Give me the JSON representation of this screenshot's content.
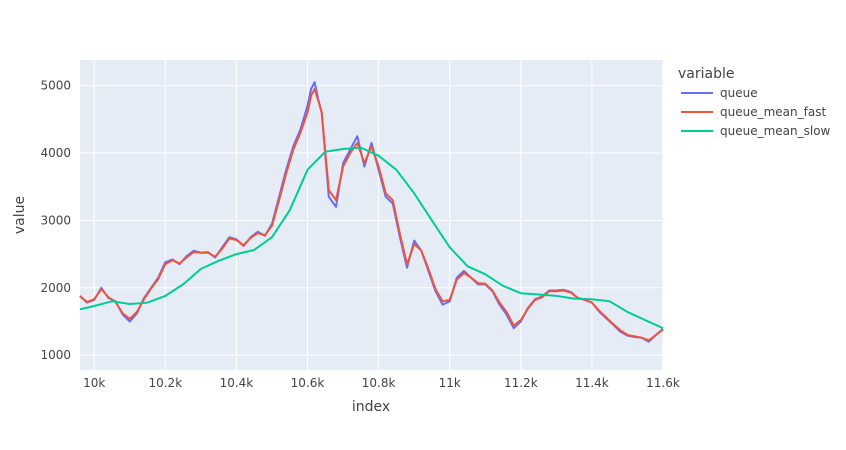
{
  "chart_data": {
    "type": "line",
    "xlabel": "index",
    "ylabel": "value",
    "xlim": [
      9960,
      11600
    ],
    "ylim": [
      780,
      5380
    ],
    "x_ticks": [
      {
        "value": 10000,
        "label": "10k"
      },
      {
        "value": 10200,
        "label": "10.2k"
      },
      {
        "value": 10400,
        "label": "10.4k"
      },
      {
        "value": 10600,
        "label": "10.6k"
      },
      {
        "value": 10800,
        "label": "10.8k"
      },
      {
        "value": 11000,
        "label": "11k"
      },
      {
        "value": 11200,
        "label": "11.2k"
      },
      {
        "value": 11400,
        "label": "11.4k"
      },
      {
        "value": 11600,
        "label": "11.6k"
      }
    ],
    "y_ticks": [
      {
        "value": 1000,
        "label": "1000"
      },
      {
        "value": 2000,
        "label": "2000"
      },
      {
        "value": 3000,
        "label": "3000"
      },
      {
        "value": 4000,
        "label": "4000"
      },
      {
        "value": 5000,
        "label": "5000"
      }
    ],
    "grid": true,
    "legend": {
      "title": "variable",
      "position": "right"
    },
    "series": [
      {
        "name": "queue",
        "color": "#636efa",
        "x": [
          9960,
          9980,
          10000,
          10020,
          10040,
          10060,
          10080,
          10100,
          10120,
          10140,
          10160,
          10180,
          10200,
          10220,
          10240,
          10260,
          10280,
          10300,
          10320,
          10340,
          10360,
          10380,
          10400,
          10420,
          10440,
          10460,
          10480,
          10500,
          10520,
          10540,
          10560,
          10580,
          10600,
          10610,
          10620,
          10630,
          10640,
          10660,
          10680,
          10700,
          10720,
          10740,
          10760,
          10780,
          10800,
          10820,
          10840,
          10860,
          10880,
          10900,
          10920,
          10940,
          10960,
          10980,
          11000,
          11020,
          11040,
          11060,
          11080,
          11100,
          11120,
          11140,
          11160,
          11180,
          11200,
          11220,
          11240,
          11260,
          11280,
          11300,
          11320,
          11340,
          11360,
          11380,
          11400,
          11420,
          11440,
          11460,
          11480,
          11500,
          11520,
          11540,
          11560,
          11580,
          11600
        ],
        "y": [
          1880,
          1780,
          1820,
          2000,
          1850,
          1800,
          1600,
          1500,
          1620,
          1850,
          2000,
          2150,
          2380,
          2420,
          2350,
          2470,
          2550,
          2520,
          2530,
          2450,
          2600,
          2750,
          2720,
          2620,
          2750,
          2830,
          2770,
          2950,
          3350,
          3750,
          4100,
          4350,
          4700,
          4950,
          5050,
          4800,
          4600,
          3350,
          3200,
          3850,
          4050,
          4250,
          3800,
          4150,
          3750,
          3350,
          3250,
          2750,
          2300,
          2700,
          2550,
          2250,
          1950,
          1750,
          1800,
          2150,
          2250,
          2150,
          2050,
          2050,
          1950,
          1750,
          1600,
          1400,
          1500,
          1700,
          1830,
          1870,
          1960,
          1960,
          1970,
          1940,
          1850,
          1820,
          1780,
          1650,
          1550,
          1450,
          1350,
          1290,
          1270,
          1260,
          1200,
          1300,
          1390
        ]
      },
      {
        "name": "queue_mean_fast",
        "color": "#ef553b",
        "x": [
          9960,
          9980,
          10000,
          10020,
          10040,
          10060,
          10080,
          10100,
          10120,
          10140,
          10160,
          10180,
          10200,
          10220,
          10240,
          10260,
          10280,
          10300,
          10320,
          10340,
          10360,
          10380,
          10400,
          10420,
          10440,
          10460,
          10480,
          10500,
          10520,
          10540,
          10560,
          10580,
          10600,
          10610,
          10620,
          10630,
          10640,
          10660,
          10680,
          10700,
          10720,
          10740,
          10760,
          10780,
          10800,
          10820,
          10840,
          10860,
          10880,
          10900,
          10920,
          10940,
          10960,
          10980,
          11000,
          11020,
          11040,
          11060,
          11080,
          11100,
          11120,
          11140,
          11160,
          11180,
          11200,
          11220,
          11240,
          11260,
          11280,
          11300,
          11320,
          11340,
          11360,
          11380,
          11400,
          11420,
          11440,
          11460,
          11480,
          11500,
          11520,
          11540,
          11560,
          11580,
          11600
        ],
        "y": [
          1870,
          1790,
          1830,
          1980,
          1860,
          1790,
          1620,
          1540,
          1640,
          1830,
          1990,
          2130,
          2350,
          2410,
          2360,
          2450,
          2530,
          2520,
          2520,
          2460,
          2580,
          2730,
          2710,
          2630,
          2740,
          2810,
          2780,
          2920,
          3300,
          3700,
          4050,
          4300,
          4600,
          4850,
          4950,
          4780,
          4600,
          3450,
          3300,
          3800,
          4000,
          4150,
          3850,
          4100,
          3800,
          3400,
          3300,
          2800,
          2350,
          2650,
          2550,
          2280,
          1980,
          1800,
          1820,
          2120,
          2220,
          2150,
          2070,
          2060,
          1960,
          1780,
          1640,
          1440,
          1520,
          1690,
          1820,
          1860,
          1950,
          1950,
          1960,
          1930,
          1850,
          1820,
          1780,
          1660,
          1560,
          1460,
          1370,
          1300,
          1280,
          1260,
          1220,
          1300,
          1380
        ]
      },
      {
        "name": "queue_mean_slow",
        "color": "#00cc96",
        "x": [
          9960,
          10000,
          10050,
          10100,
          10150,
          10200,
          10250,
          10300,
          10350,
          10400,
          10450,
          10500,
          10550,
          10600,
          10650,
          10700,
          10750,
          10800,
          10850,
          10900,
          10950,
          11000,
          11050,
          11100,
          11150,
          11200,
          11250,
          11300,
          11350,
          11400,
          11450,
          11500,
          11550,
          11600
        ],
        "y": [
          1680,
          1730,
          1800,
          1760,
          1780,
          1880,
          2050,
          2280,
          2400,
          2500,
          2560,
          2750,
          3150,
          3750,
          4020,
          4060,
          4080,
          3960,
          3750,
          3400,
          3000,
          2600,
          2320,
          2200,
          2030,
          1920,
          1900,
          1880,
          1840,
          1830,
          1800,
          1640,
          1520,
          1400
        ]
      }
    ]
  }
}
